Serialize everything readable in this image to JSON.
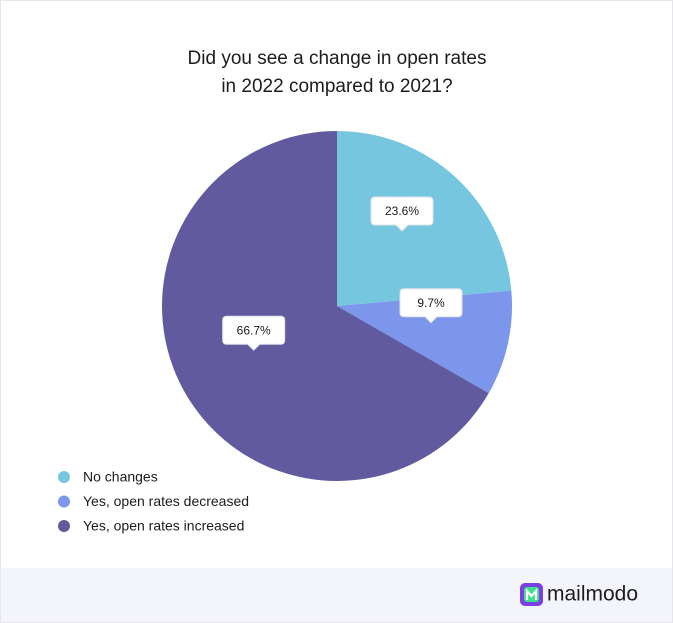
{
  "chart_data": {
    "type": "pie",
    "title": [
      "Did you see a change in open rates",
      "in 2022 compared to 2021?"
    ],
    "categories": [
      "No changes",
      "Yes, open rates decreased",
      "Yes, open rates increased"
    ],
    "values": [
      23.6,
      9.7,
      66.7
    ],
    "value_labels": [
      "23.6%",
      "9.7%",
      "66.7%"
    ],
    "colors": [
      "#76c6e0",
      "#7b96ea",
      "#625a9f"
    ],
    "legend": "bottom-left"
  },
  "brand": "mailmodo"
}
